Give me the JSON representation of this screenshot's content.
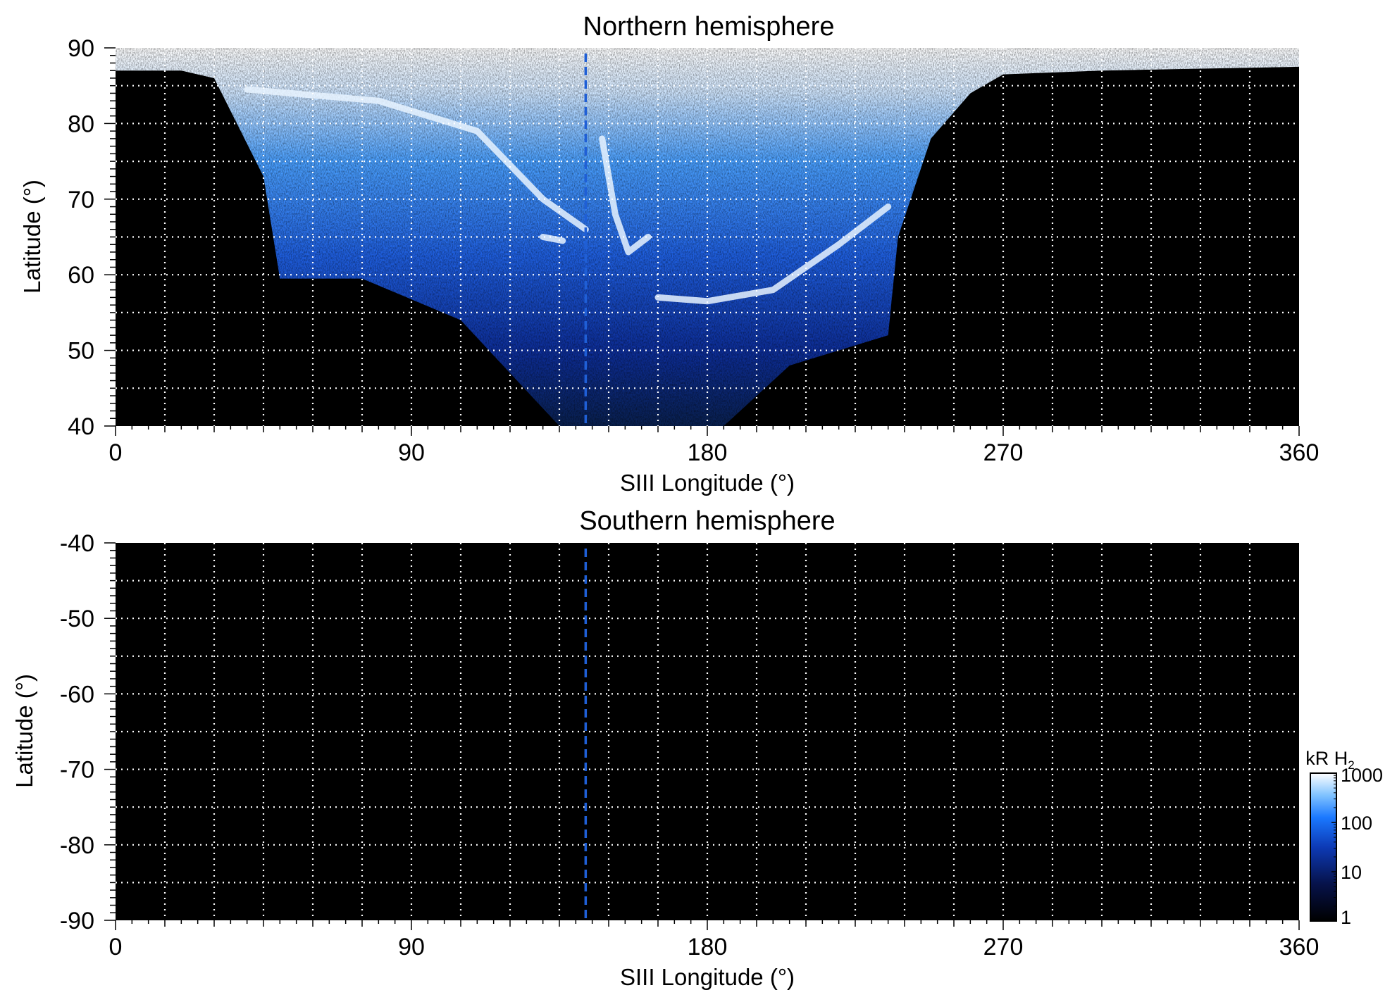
{
  "chart_data": [
    {
      "type": "heatmap",
      "title": "Northern hemisphere",
      "xlabel": "SIII Longitude (°)",
      "ylabel": "Latitude (°)",
      "xlim": [
        0,
        360
      ],
      "ylim": [
        40,
        90
      ],
      "xticks": [
        0,
        90,
        180,
        270,
        360
      ],
      "yticks": [
        40,
        50,
        60,
        70,
        80,
        90
      ],
      "grid": {
        "x_step": 15,
        "y_step": 5,
        "style": "dotted",
        "color": "#ffffff"
      },
      "reference_line": {
        "longitude": 143,
        "style": "dashed",
        "color": "#1f5fd6"
      },
      "emission_region": {
        "description_of_extent": "bright polar cap above ~86° latitude, oval emission between ~20° and ~275° longitude",
        "lower_boundary": [
          {
            "lon": 0,
            "lat": 87
          },
          {
            "lon": 20,
            "lat": 87
          },
          {
            "lon": 30,
            "lat": 86
          },
          {
            "lon": 45,
            "lat": 73
          },
          {
            "lon": 50,
            "lat": 59.5
          },
          {
            "lon": 75,
            "lat": 59.5
          },
          {
            "lon": 105,
            "lat": 54
          },
          {
            "lon": 120,
            "lat": 47
          },
          {
            "lon": 135,
            "lat": 40
          },
          {
            "lon": 185,
            "lat": 40
          },
          {
            "lon": 205,
            "lat": 48
          },
          {
            "lon": 235,
            "lat": 52
          },
          {
            "lon": 238,
            "lat": 65
          },
          {
            "lon": 248,
            "lat": 78
          },
          {
            "lon": 260,
            "lat": 84
          },
          {
            "lon": 270,
            "lat": 86.5
          },
          {
            "lon": 300,
            "lat": 87
          },
          {
            "lon": 360,
            "lat": 87.5
          }
        ],
        "bright_arcs": [
          {
            "points": [
              {
                "lon": 40,
                "lat": 84.5
              },
              {
                "lon": 80,
                "lat": 83
              },
              {
                "lon": 110,
                "lat": 79
              },
              {
                "lon": 130,
                "lat": 70
              },
              {
                "lon": 143,
                "lat": 66
              }
            ]
          },
          {
            "points": [
              {
                "lon": 235,
                "lat": 69
              },
              {
                "lon": 220,
                "lat": 64
              },
              {
                "lon": 200,
                "lat": 58
              },
              {
                "lon": 180,
                "lat": 56.5
              },
              {
                "lon": 165,
                "lat": 57
              }
            ]
          },
          {
            "points": [
              {
                "lon": 148,
                "lat": 78
              },
              {
                "lon": 152,
                "lat": 68
              },
              {
                "lon": 156,
                "lat": 63
              },
              {
                "lon": 162,
                "lat": 65
              }
            ]
          },
          {
            "points": [
              {
                "lon": 130,
                "lat": 65
              },
              {
                "lon": 136,
                "lat": 64.5
              }
            ]
          }
        ]
      }
    },
    {
      "type": "heatmap",
      "title": "Southern hemisphere",
      "xlabel": "SIII Longitude (°)",
      "ylabel": "Latitude (°)",
      "xlim": [
        0,
        360
      ],
      "ylim": [
        -90,
        -40
      ],
      "xticks": [
        0,
        90,
        180,
        270,
        360
      ],
      "yticks": [
        -40,
        -50,
        -60,
        -70,
        -80,
        -90
      ],
      "grid": {
        "x_step": 15,
        "y_step": 5,
        "style": "dotted",
        "color": "#ffffff"
      },
      "reference_line": {
        "longitude": 143,
        "style": "dashed",
        "color": "#1f5fd6"
      },
      "emission_region": null
    }
  ],
  "colorbar": {
    "label_main": "kR H",
    "label_sub": "2",
    "scale": "log",
    "range": [
      1,
      1000
    ],
    "ticks": [
      "1000",
      "100",
      "10",
      "1"
    ],
    "colors": [
      "#000000",
      "#06124a",
      "#0d3ab5",
      "#1a78ff",
      "#7fc2ff",
      "#ffffff"
    ]
  }
}
